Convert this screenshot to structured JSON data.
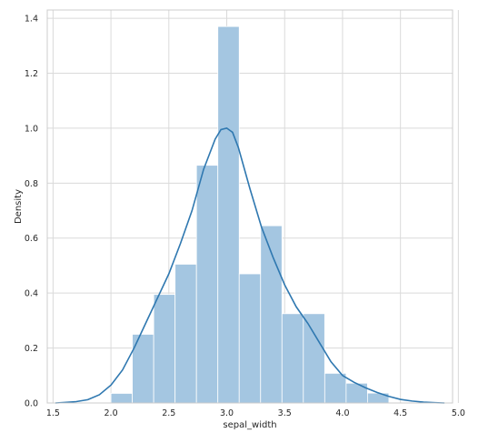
{
  "chart_data": {
    "type": "histogram",
    "xlabel": "sepal_width",
    "ylabel": "Density",
    "xlim": [
      1.45,
      4.95
    ],
    "ylim": [
      0,
      1.43
    ],
    "xticks": [
      "1.5",
      "2.0",
      "2.5",
      "3.0",
      "3.5",
      "4.0",
      "4.5",
      "5.0"
    ],
    "yticks": [
      "0.0",
      "0.2",
      "0.4",
      "0.6",
      "0.8",
      "1.0",
      "1.2",
      "1.4"
    ],
    "grid": true,
    "bar_color": "#a4c6e1",
    "line_color": "#2f78b0",
    "bins": [
      {
        "x0": 2.0,
        "x1": 2.1846,
        "density": 0.035
      },
      {
        "x0": 2.1846,
        "x1": 2.3692,
        "density": 0.25
      },
      {
        "x0": 2.3692,
        "x1": 2.5538,
        "density": 0.395
      },
      {
        "x0": 2.5538,
        "x1": 2.7385,
        "density": 0.505
      },
      {
        "x0": 2.7385,
        "x1": 2.9231,
        "density": 0.865
      },
      {
        "x0": 2.9231,
        "x1": 3.1077,
        "density": 1.37
      },
      {
        "x0": 3.1077,
        "x1": 3.2923,
        "density": 0.47
      },
      {
        "x0": 3.2923,
        "x1": 3.4769,
        "density": 0.645
      },
      {
        "x0": 3.4769,
        "x1": 3.6615,
        "density": 0.325
      },
      {
        "x0": 3.6615,
        "x1": 3.8462,
        "density": 0.325
      },
      {
        "x0": 3.8462,
        "x1": 4.0308,
        "density": 0.108
      },
      {
        "x0": 4.0308,
        "x1": 4.2154,
        "density": 0.072
      },
      {
        "x0": 4.2154,
        "x1": 4.4,
        "density": 0.036
      }
    ],
    "kde": {
      "x": [
        1.52,
        1.6,
        1.7,
        1.8,
        1.9,
        2.0,
        2.1,
        2.2,
        2.3,
        2.4,
        2.5,
        2.6,
        2.7,
        2.8,
        2.9,
        2.95,
        3.0,
        3.05,
        3.1,
        3.2,
        3.3,
        3.4,
        3.5,
        3.6,
        3.7,
        3.8,
        3.9,
        4.0,
        4.1,
        4.2,
        4.3,
        4.4,
        4.5,
        4.6,
        4.7,
        4.8,
        4.88
      ],
      "y": [
        0.0,
        0.002,
        0.005,
        0.012,
        0.03,
        0.065,
        0.12,
        0.2,
        0.29,
        0.38,
        0.47,
        0.58,
        0.7,
        0.85,
        0.96,
        0.995,
        1.0,
        0.985,
        0.93,
        0.78,
        0.64,
        0.53,
        0.43,
        0.35,
        0.29,
        0.22,
        0.15,
        0.1,
        0.075,
        0.055,
        0.038,
        0.024,
        0.013,
        0.007,
        0.003,
        0.001,
        0.0
      ]
    }
  }
}
